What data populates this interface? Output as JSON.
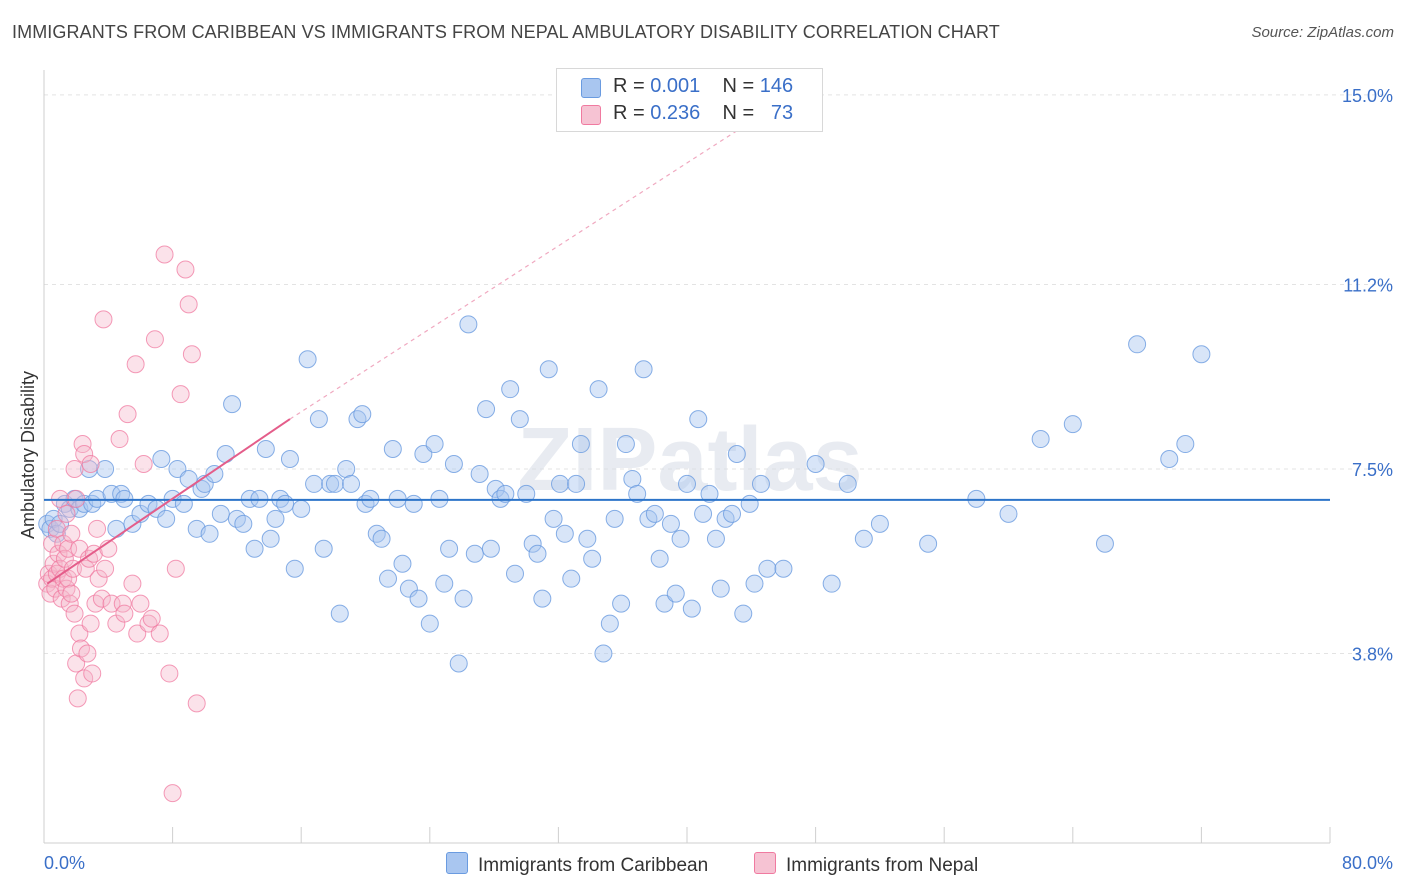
{
  "title": "IMMIGRANTS FROM CARIBBEAN VS IMMIGRANTS FROM NEPAL AMBULATORY DISABILITY CORRELATION CHART",
  "source": "Source: ZipAtlas.com",
  "legend": {
    "rows": [
      {
        "r_label": "R =",
        "r_value": "0.001",
        "n_label": "N =",
        "n_value": "146"
      },
      {
        "r_label": "R =",
        "r_value": "0.236",
        "n_label": "N =",
        "n_value": "73"
      }
    ]
  },
  "bottom_legend": {
    "caribbean": "Immigrants from Caribbean",
    "nepal": "Immigrants from Nepal"
  },
  "watermark": "ZIPatlas",
  "colors": {
    "caribbean": "#6a9be0",
    "caribbean_fill": "#a9c6f0",
    "nepal": "#f07aa0",
    "nepal_fill": "#f6b6cb",
    "trend_caribbean": "#2d74c9",
    "trend_nepal": "#e45d8a",
    "tick_label": "#3a6fc8"
  },
  "chart_data": {
    "type": "scatter",
    "title": "IMMIGRANTS FROM CARIBBEAN VS IMMIGRANTS FROM NEPAL AMBULATORY DISABILITY CORRELATION CHART",
    "xlabel": "",
    "ylabel": "Ambulatory Disability",
    "xlim": [
      0,
      80
    ],
    "ylim": [
      0,
      15.5
    ],
    "x_tick_labels": [
      "0.0%",
      "80.0%"
    ],
    "y_ticks": [
      3.8,
      7.5,
      11.2,
      15.0
    ],
    "y_tick_labels": [
      "3.8%",
      "7.5%",
      "11.2%",
      "15.0%"
    ],
    "grid": true,
    "legend_position": "top-center",
    "series": [
      {
        "name": "Immigrants from Caribbean",
        "R": 0.001,
        "N": 146,
        "trend": {
          "x": [
            0,
            80
          ],
          "y": [
            6.88,
            6.88
          ]
        },
        "points": [
          [
            0.2,
            6.4
          ],
          [
            0.4,
            6.3
          ],
          [
            0.6,
            6.5
          ],
          [
            0.8,
            6.2
          ],
          [
            1.0,
            6.4
          ],
          [
            1.3,
            6.8
          ],
          [
            1.6,
            6.7
          ],
          [
            1.9,
            6.9
          ],
          [
            2.2,
            6.7
          ],
          [
            2.5,
            6.8
          ],
          [
            2.8,
            7.5
          ],
          [
            3.0,
            6.8
          ],
          [
            3.3,
            6.9
          ],
          [
            3.8,
            7.5
          ],
          [
            4.2,
            7.0
          ],
          [
            4.5,
            6.3
          ],
          [
            4.8,
            7.0
          ],
          [
            5.0,
            6.9
          ],
          [
            5.5,
            6.4
          ],
          [
            6.0,
            6.6
          ],
          [
            6.5,
            6.8
          ],
          [
            7.0,
            6.7
          ],
          [
            7.3,
            7.7
          ],
          [
            7.6,
            6.5
          ],
          [
            8.0,
            6.9
          ],
          [
            8.3,
            7.5
          ],
          [
            8.7,
            6.8
          ],
          [
            9.0,
            7.3
          ],
          [
            9.5,
            6.3
          ],
          [
            9.8,
            7.1
          ],
          [
            10.0,
            7.2
          ],
          [
            10.3,
            6.2
          ],
          [
            10.6,
            7.4
          ],
          [
            11.0,
            6.6
          ],
          [
            11.3,
            7.8
          ],
          [
            11.7,
            8.8
          ],
          [
            12.0,
            6.5
          ],
          [
            12.4,
            6.4
          ],
          [
            12.8,
            6.9
          ],
          [
            13.1,
            5.9
          ],
          [
            13.4,
            6.9
          ],
          [
            13.8,
            7.9
          ],
          [
            14.1,
            6.1
          ],
          [
            14.4,
            6.5
          ],
          [
            14.7,
            6.9
          ],
          [
            15.0,
            6.8
          ],
          [
            15.3,
            7.7
          ],
          [
            15.6,
            5.5
          ],
          [
            16.0,
            6.7
          ],
          [
            16.4,
            9.7
          ],
          [
            16.8,
            7.2
          ],
          [
            17.1,
            8.5
          ],
          [
            17.4,
            5.9
          ],
          [
            17.8,
            7.2
          ],
          [
            18.1,
            7.2
          ],
          [
            18.4,
            4.6
          ],
          [
            18.8,
            7.5
          ],
          [
            19.1,
            7.2
          ],
          [
            19.5,
            8.5
          ],
          [
            19.8,
            8.6
          ],
          [
            20.0,
            6.8
          ],
          [
            20.3,
            6.9
          ],
          [
            20.7,
            6.2
          ],
          [
            21.0,
            6.1
          ],
          [
            21.4,
            5.3
          ],
          [
            21.7,
            7.9
          ],
          [
            22.0,
            6.9
          ],
          [
            22.3,
            5.6
          ],
          [
            22.7,
            5.1
          ],
          [
            23.0,
            6.8
          ],
          [
            23.3,
            4.9
          ],
          [
            23.6,
            7.8
          ],
          [
            24.0,
            4.4
          ],
          [
            24.3,
            8.0
          ],
          [
            24.6,
            6.9
          ],
          [
            24.9,
            5.2
          ],
          [
            25.2,
            5.9
          ],
          [
            25.5,
            7.6
          ],
          [
            25.8,
            3.6
          ],
          [
            26.1,
            4.9
          ],
          [
            26.4,
            10.4
          ],
          [
            26.8,
            5.8
          ],
          [
            27.1,
            7.4
          ],
          [
            27.5,
            8.7
          ],
          [
            27.8,
            5.9
          ],
          [
            28.1,
            7.1
          ],
          [
            28.4,
            6.9
          ],
          [
            28.7,
            7.0
          ],
          [
            29.0,
            9.1
          ],
          [
            29.3,
            5.4
          ],
          [
            29.6,
            8.5
          ],
          [
            30.0,
            7.0
          ],
          [
            30.4,
            6.0
          ],
          [
            30.7,
            5.8
          ],
          [
            31.0,
            4.9
          ],
          [
            31.4,
            9.5
          ],
          [
            31.7,
            6.5
          ],
          [
            32.1,
            7.2
          ],
          [
            32.4,
            6.2
          ],
          [
            32.8,
            5.3
          ],
          [
            33.1,
            7.2
          ],
          [
            33.4,
            8.0
          ],
          [
            33.8,
            6.1
          ],
          [
            34.1,
            5.7
          ],
          [
            34.5,
            9.1
          ],
          [
            34.8,
            3.8
          ],
          [
            35.2,
            4.4
          ],
          [
            35.5,
            6.5
          ],
          [
            35.9,
            4.8
          ],
          [
            36.2,
            8.0
          ],
          [
            36.6,
            7.3
          ],
          [
            36.9,
            7.0
          ],
          [
            37.3,
            9.5
          ],
          [
            37.6,
            6.5
          ],
          [
            38.0,
            6.6
          ],
          [
            38.3,
            5.7
          ],
          [
            38.6,
            4.8
          ],
          [
            39.0,
            6.4
          ],
          [
            39.3,
            5.0
          ],
          [
            39.6,
            6.1
          ],
          [
            40.0,
            7.2
          ],
          [
            40.3,
            4.7
          ],
          [
            40.7,
            8.5
          ],
          [
            41.0,
            6.6
          ],
          [
            41.4,
            7.0
          ],
          [
            41.8,
            6.1
          ],
          [
            42.1,
            5.1
          ],
          [
            42.4,
            6.5
          ],
          [
            42.8,
            6.6
          ],
          [
            43.1,
            7.8
          ],
          [
            43.5,
            4.6
          ],
          [
            43.9,
            6.8
          ],
          [
            44.2,
            5.2
          ],
          [
            44.6,
            7.2
          ],
          [
            45.0,
            5.5
          ],
          [
            46.0,
            5.5
          ],
          [
            48.0,
            7.6
          ],
          [
            49.0,
            5.2
          ],
          [
            50.0,
            7.2
          ],
          [
            51.0,
            6.1
          ],
          [
            52.0,
            6.4
          ],
          [
            55.0,
            6.0
          ],
          [
            58.0,
            6.9
          ],
          [
            60.0,
            6.6
          ],
          [
            62.0,
            8.1
          ],
          [
            64.0,
            8.4
          ],
          [
            66.0,
            6.0
          ],
          [
            68.0,
            10.0
          ],
          [
            70.0,
            7.7
          ],
          [
            71.0,
            8.0
          ],
          [
            72.0,
            9.8
          ]
        ]
      },
      {
        "name": "Immigrants from Nepal",
        "R": 0.236,
        "N": 73,
        "trend_solid": {
          "x": [
            0.2,
            15.3
          ],
          "y": [
            5.2,
            8.5
          ]
        },
        "trend_dashed": {
          "x": [
            15.3,
            48.0
          ],
          "y": [
            8.5,
            15.3
          ]
        },
        "points": [
          [
            0.2,
            5.2
          ],
          [
            0.3,
            5.4
          ],
          [
            0.4,
            5.0
          ],
          [
            0.5,
            5.3
          ],
          [
            0.5,
            6.0
          ],
          [
            0.6,
            5.6
          ],
          [
            0.7,
            5.1
          ],
          [
            0.8,
            5.4
          ],
          [
            0.8,
            6.3
          ],
          [
            0.9,
            5.8
          ],
          [
            1.0,
            5.5
          ],
          [
            1.0,
            6.9
          ],
          [
            1.1,
            4.9
          ],
          [
            1.2,
            5.3
          ],
          [
            1.2,
            6.0
          ],
          [
            1.3,
            5.7
          ],
          [
            1.4,
            5.1
          ],
          [
            1.4,
            6.6
          ],
          [
            1.5,
            5.3
          ],
          [
            1.5,
            5.9
          ],
          [
            1.6,
            4.8
          ],
          [
            1.7,
            6.2
          ],
          [
            1.7,
            5.0
          ],
          [
            1.8,
            5.5
          ],
          [
            1.9,
            4.6
          ],
          [
            1.9,
            7.5
          ],
          [
            2.0,
            3.6
          ],
          [
            2.0,
            6.9
          ],
          [
            2.1,
            2.9
          ],
          [
            2.2,
            4.2
          ],
          [
            2.2,
            5.9
          ],
          [
            2.3,
            3.9
          ],
          [
            2.4,
            8.0
          ],
          [
            2.5,
            3.3
          ],
          [
            2.5,
            7.8
          ],
          [
            2.6,
            5.5
          ],
          [
            2.7,
            3.8
          ],
          [
            2.8,
            5.7
          ],
          [
            2.9,
            4.4
          ],
          [
            2.9,
            7.6
          ],
          [
            3.0,
            3.4
          ],
          [
            3.1,
            5.8
          ],
          [
            3.2,
            4.8
          ],
          [
            3.3,
            6.3
          ],
          [
            3.4,
            5.3
          ],
          [
            3.6,
            4.9
          ],
          [
            3.7,
            10.5
          ],
          [
            3.8,
            5.5
          ],
          [
            4.0,
            5.9
          ],
          [
            4.2,
            4.8
          ],
          [
            4.5,
            4.4
          ],
          [
            4.7,
            8.1
          ],
          [
            4.9,
            4.8
          ],
          [
            5.0,
            4.6
          ],
          [
            5.2,
            8.6
          ],
          [
            5.5,
            5.2
          ],
          [
            5.7,
            9.6
          ],
          [
            5.8,
            4.2
          ],
          [
            6.0,
            4.8
          ],
          [
            6.2,
            7.6
          ],
          [
            6.5,
            4.4
          ],
          [
            6.7,
            4.5
          ],
          [
            6.9,
            10.1
          ],
          [
            7.2,
            4.2
          ],
          [
            7.5,
            11.8
          ],
          [
            7.8,
            3.4
          ],
          [
            8.0,
            1.0
          ],
          [
            8.2,
            5.5
          ],
          [
            8.5,
            9.0
          ],
          [
            8.8,
            11.5
          ],
          [
            9.0,
            10.8
          ],
          [
            9.2,
            9.8
          ],
          [
            9.5,
            2.8
          ]
        ]
      }
    ]
  }
}
